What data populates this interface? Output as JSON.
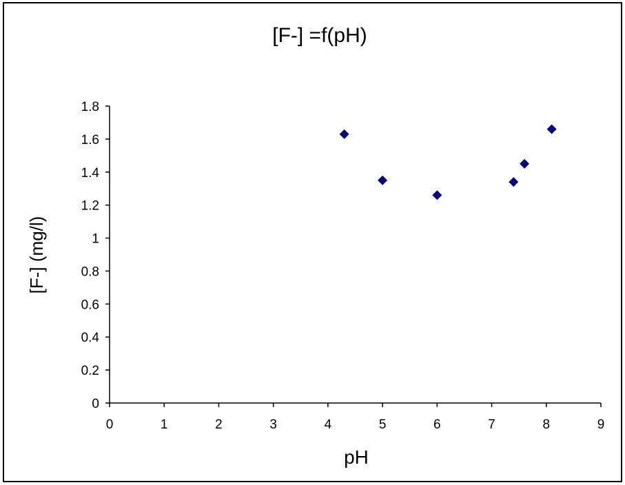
{
  "chart_data": {
    "type": "scatter",
    "title": "[F-] =f(pH)",
    "xlabel": "pH",
    "ylabel": "[F-] (mg/l)",
    "xlim": [
      0,
      9
    ],
    "ylim": [
      0,
      1.8
    ],
    "xticks": [
      "0",
      "1",
      "2",
      "3",
      "4",
      "5",
      "6",
      "7",
      "8",
      "9"
    ],
    "yticks": [
      "0",
      "0.2",
      "0.4",
      "0.6",
      "0.8",
      "1",
      "1.2",
      "1.4",
      "1.6",
      "1.8"
    ],
    "grid": false,
    "legend": "none",
    "marker": "diamond",
    "marker_color": "#000080",
    "series": [
      {
        "points": [
          {
            "x": 4.3,
            "y": 1.63
          },
          {
            "x": 5.0,
            "y": 1.35
          },
          {
            "x": 6.0,
            "y": 1.26
          },
          {
            "x": 7.4,
            "y": 1.34
          },
          {
            "x": 7.6,
            "y": 1.45
          },
          {
            "x": 8.1,
            "y": 1.66
          }
        ]
      }
    ]
  }
}
